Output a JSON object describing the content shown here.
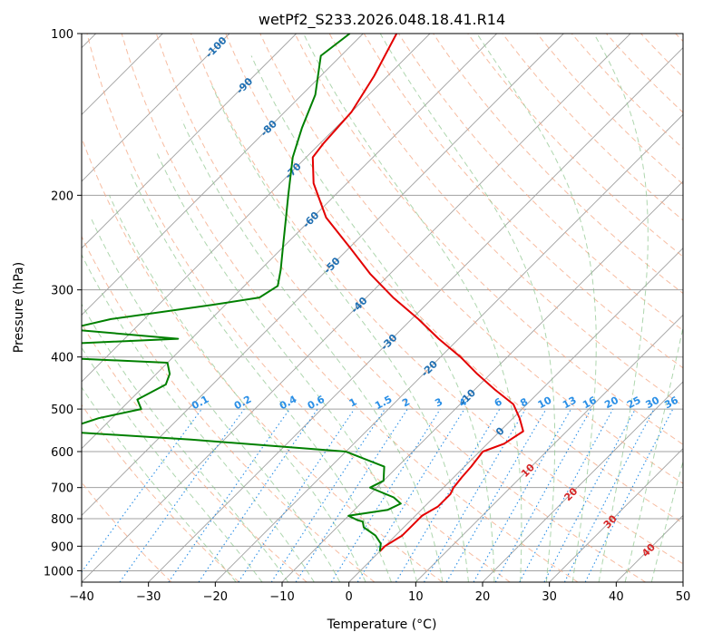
{
  "chart_data": {
    "type": "line",
    "subtype": "skew-t log-p",
    "title": "wetPf2_S233.2026.048.18.41.R14",
    "xlabel": "Temperature (°C)",
    "ylabel": "Pressure (hPa)",
    "xlim": [
      -40,
      50
    ],
    "ylim": [
      1050,
      100
    ],
    "y_scale": "log",
    "x_ticks": [
      "−40",
      "−30",
      "−20",
      "−10",
      "0",
      "10",
      "20",
      "30",
      "40",
      "50"
    ],
    "y_ticks": [
      "100",
      "200",
      "300",
      "400",
      "500",
      "600",
      "700",
      "800",
      "900",
      "1000"
    ],
    "y_tick_values": [
      100,
      200,
      300,
      400,
      500,
      600,
      700,
      800,
      900,
      1000
    ],
    "grid": true,
    "colors": {
      "temperature": "#e30000",
      "dewpoint": "#008000",
      "isotherm": "#a0a0a0",
      "dry_adiabat": "#f4a582",
      "moist_adiabat": "#8cc48c",
      "mixing_ratio": "#2a8fe6",
      "isotherm_label": "#1f6fb2",
      "moist_label": "#d62728"
    },
    "isotherm_labels": [
      "-100",
      "-90",
      "-80",
      "-70",
      "-60",
      "-50",
      "-40",
      "-30",
      "-20",
      "-10",
      "0",
      "10",
      "20",
      "30",
      "40"
    ],
    "isotherm_label_values": [
      -100,
      -90,
      -80,
      -70,
      -60,
      -50,
      -40,
      -30,
      -20,
      -10,
      0,
      10,
      20,
      30,
      40
    ],
    "isotherm_label_pressures": [
      106,
      125,
      150,
      180,
      222,
      270,
      320,
      375,
      420,
      475,
      550,
      650,
      720,
      810,
      915
    ],
    "mixing_ratio_labels": [
      "0.1",
      "0.2",
      "0.4",
      "0.6",
      "1",
      "1.5",
      "2",
      "3",
      "4",
      "6",
      "8",
      "10",
      "13",
      "16",
      "20",
      "25",
      "30",
      "36"
    ],
    "mixing_ratio_values": [
      0.1,
      0.2,
      0.4,
      0.6,
      1,
      1.5,
      2,
      3,
      4,
      6,
      8,
      10,
      13,
      16,
      20,
      25,
      30,
      36
    ],
    "series": [
      {
        "name": "Temperature",
        "p": [
          100,
          120,
          140,
          160,
          170,
          190,
          220,
          250,
          280,
          310,
          340,
          370,
          400,
          430,
          460,
          490,
          520,
          550,
          580,
          600,
          640,
          670,
          700,
          720,
          760,
          790,
          820,
          860,
          900,
          920
        ],
        "t": [
          -75,
          -72,
          -70,
          -69.5,
          -69,
          -65,
          -58,
          -50,
          -43,
          -36,
          -29,
          -23,
          -17,
          -12,
          -7,
          -2,
          1,
          3.5,
          2.5,
          0.5,
          1,
          1.2,
          1.5,
          2,
          2,
          1,
          1,
          1,
          0,
          0
        ]
      },
      {
        "name": "Dewpoint",
        "p": [
          100,
          110,
          130,
          150,
          170,
          200,
          220,
          250,
          275,
          295,
          310,
          320,
          340,
          355,
          370,
          380,
          395,
          410,
          430,
          450,
          480,
          500,
          520,
          550,
          570,
          600,
          640,
          680,
          700,
          730,
          750,
          770,
          790,
          805,
          810,
          830,
          860,
          890,
          920
        ],
        "t": [
          -82,
          -83,
          -78,
          -75,
          -72,
          -67,
          -64,
          -60,
          -57,
          -55,
          -56,
          -62,
          -75,
          -80,
          -62,
          -82,
          -90,
          -60,
          -58,
          -57,
          -59,
          -57,
          -62,
          -66,
          -45,
          -20,
          -12,
          -10,
          -11,
          -6,
          -4,
          -5,
          -10,
          -8,
          -7,
          -6,
          -3,
          -1,
          0
        ]
      }
    ]
  }
}
